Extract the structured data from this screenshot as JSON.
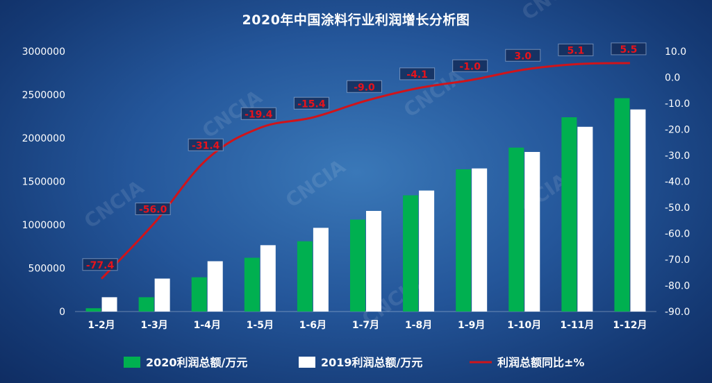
{
  "chart_data": {
    "type": "bar",
    "title": "2020年中国涂料行业利润增长分析图",
    "watermark": "CNCIA",
    "categories": [
      "1-2月",
      "1-3月",
      "1-4月",
      "1-5月",
      "1-6月",
      "1-7月",
      "1-8月",
      "1-9月",
      "1-10月",
      "1-11月",
      "1-12月"
    ],
    "series": [
      {
        "name": "2020利润总额/万元",
        "type": "bar",
        "axis": "left",
        "color": "#00b050",
        "values": [
          38000,
          165000,
          395000,
          620000,
          810000,
          1060000,
          1340000,
          1640000,
          1890000,
          2240000,
          2460000
        ]
      },
      {
        "name": "2019利润总额/万元",
        "type": "bar",
        "axis": "left",
        "color": "#ffffff",
        "values": [
          165000,
          380000,
          580000,
          765000,
          965000,
          1160000,
          1395000,
          1650000,
          1840000,
          2130000,
          2330000
        ]
      },
      {
        "name": "利润总额同比±%",
        "type": "line",
        "axis": "right",
        "color": "#d0141a",
        "values": [
          -77.4,
          -56.0,
          -31.4,
          -19.4,
          -15.4,
          -9.0,
          -4.1,
          -1.0,
          3.0,
          5.1,
          5.5
        ],
        "labels": [
          "-77.4",
          "-56.0",
          "-31.4",
          "-19.4",
          "-15.4",
          "-9.0",
          "-4.1",
          "-1.0",
          "3.0",
          "5.1",
          "5.5"
        ]
      }
    ],
    "y_left": {
      "range": [
        0,
        3000000
      ],
      "ticks": [
        "0",
        "500000",
        "1000000",
        "1500000",
        "2000000",
        "2500000",
        "3000000"
      ]
    },
    "y_right": {
      "range": [
        -90,
        10
      ],
      "ticks": [
        "10.0",
        "0.0",
        "-10.0",
        "-20.0",
        "-30.0",
        "-40.0",
        "-50.0",
        "-60.0",
        "-70.0",
        "-80.0",
        "-90.0"
      ]
    },
    "grid": false,
    "legend_position": "bottom"
  }
}
